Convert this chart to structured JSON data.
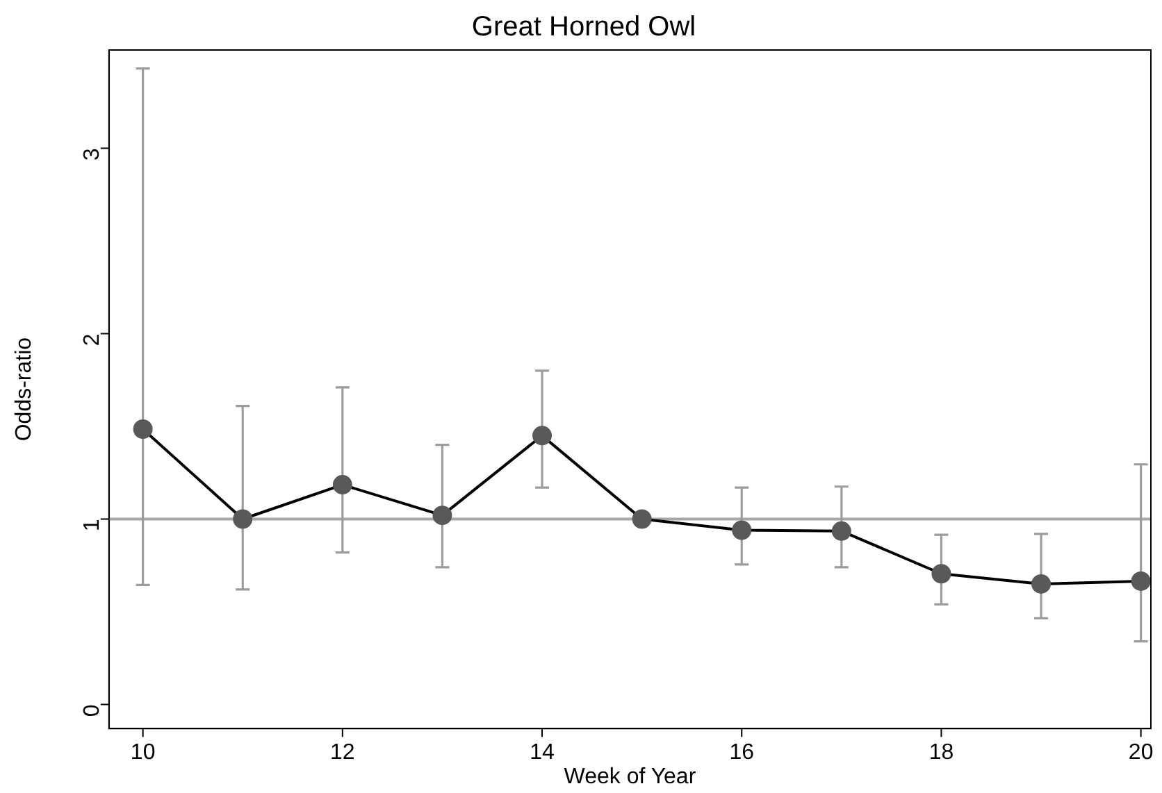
{
  "chart_data": {
    "type": "line",
    "title": "Great Horned Owl",
    "xlabel": "Week of Year",
    "ylabel": "Odds-ratio",
    "x": [
      10,
      11,
      12,
      13,
      14,
      15,
      16,
      17,
      18,
      19,
      20
    ],
    "series": [
      {
        "color": "#000000",
        "values": [
          1.485,
          1.0,
          1.185,
          1.02,
          1.45,
          1.0,
          0.94,
          0.935,
          0.705,
          0.65,
          0.665
        ],
        "errors": [
          [
            0.645,
            3.43
          ],
          [
            0.62,
            1.61
          ],
          [
            0.82,
            1.71
          ],
          [
            0.74,
            1.4
          ],
          [
            1.17,
            1.8
          ],
          null,
          [
            0.755,
            1.17
          ],
          [
            0.74,
            1.175
          ],
          [
            0.54,
            0.915
          ],
          [
            0.465,
            0.92
          ],
          [
            0.34,
            1.295
          ]
        ]
      }
    ],
    "xlim": [
      9.66,
      20.1
    ],
    "ylim": [
      -0.13,
      3.53
    ],
    "xticks": [
      10,
      12,
      14,
      16,
      18,
      20
    ],
    "yticks": [
      0,
      1,
      2,
      3
    ],
    "ref_lines": [
      {
        "axis": "y",
        "value": 1,
        "color": "#a6a6a6"
      }
    ],
    "marker": "circle",
    "line_style": "solid",
    "grid": false,
    "legend": false
  }
}
